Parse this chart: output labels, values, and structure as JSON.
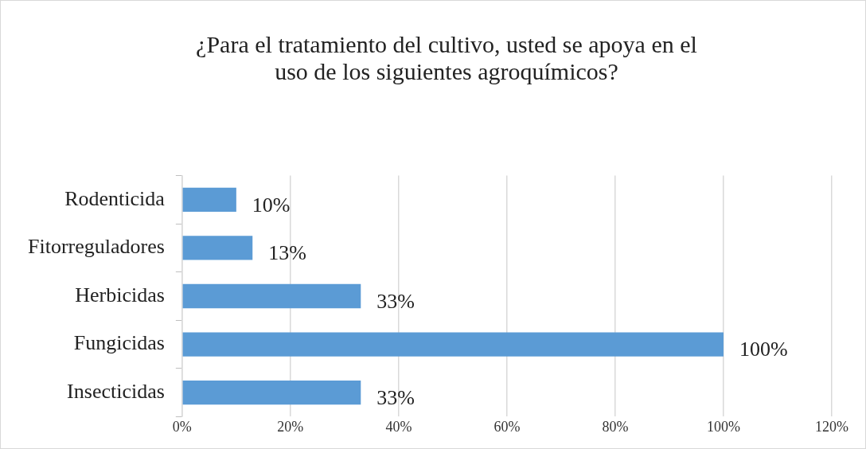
{
  "chart_data": {
    "type": "bar",
    "orientation": "horizontal",
    "title": "¿Para el tratamiento del cultivo, usted se apoya en el uso de los siguientes agroquímicos?",
    "categories": [
      "Rodenticida",
      "Fitorreguladores",
      "Herbicidas",
      "Fungicidas",
      "Insecticidas"
    ],
    "values": [
      10,
      13,
      33,
      100,
      33
    ],
    "color": "#5b9bd5",
    "value_labels": [
      "10%",
      "13%",
      "33%",
      "100%",
      "33%"
    ],
    "xlim": [
      0,
      120
    ],
    "xticks": [
      {
        "value": 0,
        "label": "0%"
      },
      {
        "value": 20,
        "label": "20%"
      },
      {
        "value": 40,
        "label": "40%"
      },
      {
        "value": 60,
        "label": "60%"
      },
      {
        "value": 80,
        "label": "80%"
      },
      {
        "value": 100,
        "label": "100%"
      },
      {
        "value": 120,
        "label": "120%"
      }
    ],
    "grid": "x",
    "legend": false
  }
}
